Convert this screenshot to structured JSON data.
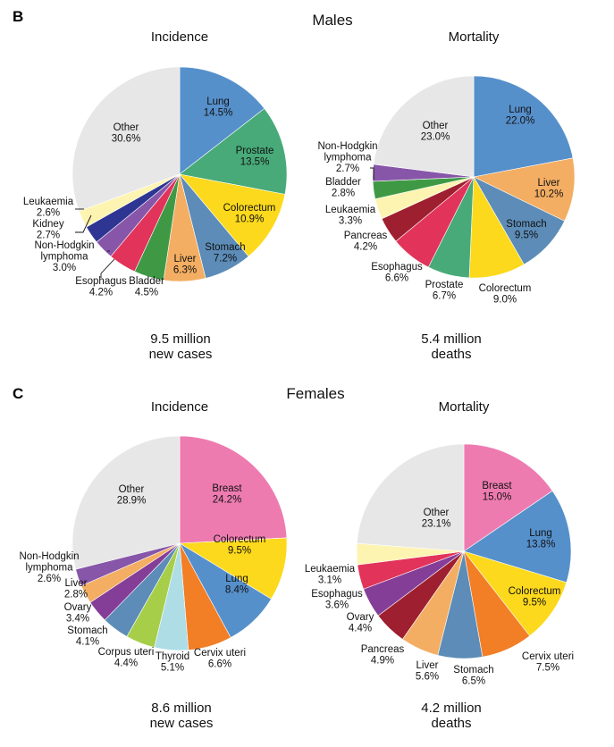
{
  "figure": {
    "panels": [
      {
        "letter": "B",
        "title": "Males"
      },
      {
        "letter": "C",
        "title": "Females"
      }
    ]
  },
  "chart_data": [
    {
      "type": "pie",
      "group": "Males",
      "title": "Incidence",
      "caption": [
        "9.5 million",
        "new cases"
      ],
      "unit": "%",
      "slices": [
        {
          "label": [
            "Lung"
          ],
          "value": 14.5,
          "value_text": "14.5%",
          "color": "#5690CB",
          "placement": "inside"
        },
        {
          "label": [
            "Prostate"
          ],
          "value": 13.5,
          "value_text": "13.5%",
          "color": "#48AA79",
          "placement": "inside"
        },
        {
          "label": [
            "Colorectum"
          ],
          "value": 10.9,
          "value_text": "10.9%",
          "color": "#FCD91C",
          "placement": "inside"
        },
        {
          "label": [
            "Stomach"
          ],
          "value": 7.2,
          "value_text": "7.2%",
          "color": "#5C8CB7",
          "placement": "inside"
        },
        {
          "label": [
            "Liver"
          ],
          "value": 6.3,
          "value_text": "6.3%",
          "color": "#F3AE63",
          "placement": "inside"
        },
        {
          "label": [
            "Bladder"
          ],
          "value": 4.5,
          "value_text": "4.5%",
          "color": "#3F9944",
          "placement": "outside"
        },
        {
          "label": [
            "Esophagus"
          ],
          "value": 4.2,
          "value_text": "4.2%",
          "color": "#E2335A",
          "placement": "outside"
        },
        {
          "label": [
            "Non-Hodgkin",
            "lymphoma"
          ],
          "value": 3.0,
          "value_text": "3.0%",
          "color": "#8756A9",
          "placement": "outside"
        },
        {
          "label": [
            "Kidney"
          ],
          "value": 2.7,
          "value_text": "2.7%",
          "color": "#2E3592",
          "placement": "outside"
        },
        {
          "label": [
            "Leukaemia"
          ],
          "value": 2.6,
          "value_text": "2.6%",
          "color": "#FDF4B2",
          "placement": "outside"
        },
        {
          "label": [
            "Other"
          ],
          "value": 30.6,
          "value_text": "30.6%",
          "color": "#E7E7E7",
          "placement": "inside"
        }
      ]
    },
    {
      "type": "pie",
      "group": "Males",
      "title": "Mortality",
      "caption": [
        "5.4 million",
        "deaths"
      ],
      "unit": "%",
      "slices": [
        {
          "label": [
            "Lung"
          ],
          "value": 22.0,
          "value_text": "22.0%",
          "color": "#5690CB",
          "placement": "inside"
        },
        {
          "label": [
            "Liver"
          ],
          "value": 10.2,
          "value_text": "10.2%",
          "color": "#F3AE63",
          "placement": "inside"
        },
        {
          "label": [
            "Stomach"
          ],
          "value": 9.5,
          "value_text": "9.5%",
          "color": "#5C8CB7",
          "placement": "inside"
        },
        {
          "label": [
            "Colorectum"
          ],
          "value": 9.0,
          "value_text": "9.0%",
          "color": "#FCD91C",
          "placement": "outside"
        },
        {
          "label": [
            "Prostate"
          ],
          "value": 6.7,
          "value_text": "6.7%",
          "color": "#48AA79",
          "placement": "outside"
        },
        {
          "label": [
            "Esophagus"
          ],
          "value": 6.6,
          "value_text": "6.6%",
          "color": "#E2335A",
          "placement": "outside"
        },
        {
          "label": [
            "Pancreas"
          ],
          "value": 4.2,
          "value_text": "4.2%",
          "color": "#9E1F2F",
          "placement": "outside"
        },
        {
          "label": [
            "Leukaemia"
          ],
          "value": 3.3,
          "value_text": "3.3%",
          "color": "#FDF4B2",
          "placement": "outside"
        },
        {
          "label": [
            "Bladder"
          ],
          "value": 2.8,
          "value_text": "2.8%",
          "color": "#3F9944",
          "placement": "outside"
        },
        {
          "label": [
            "Non-Hodgkin",
            "lymphoma"
          ],
          "value": 2.7,
          "value_text": "2.7%",
          "color": "#8756A9",
          "placement": "outside"
        },
        {
          "label": [
            "Other"
          ],
          "value": 23.0,
          "value_text": "23.0%",
          "color": "#E7E7E7",
          "placement": "inside"
        }
      ]
    },
    {
      "type": "pie",
      "group": "Females",
      "title": "Incidence",
      "caption": [
        "8.6 million",
        "new cases"
      ],
      "unit": "%",
      "slices": [
        {
          "label": [
            "Breast"
          ],
          "value": 24.2,
          "value_text": "24.2%",
          "color": "#EE7BB0",
          "placement": "inside"
        },
        {
          "label": [
            "Colorectum"
          ],
          "value": 9.5,
          "value_text": "9.5%",
          "color": "#FCD91C",
          "placement": "inside"
        },
        {
          "label": [
            "Lung"
          ],
          "value": 8.4,
          "value_text": "8.4%",
          "color": "#5690CB",
          "placement": "inside"
        },
        {
          "label": [
            "Cervix uteri"
          ],
          "value": 6.6,
          "value_text": "6.6%",
          "color": "#F27E26",
          "placement": "outside"
        },
        {
          "label": [
            "Thyroid"
          ],
          "value": 5.1,
          "value_text": "5.1%",
          "color": "#AEDDE6",
          "placement": "outside"
        },
        {
          "label": [
            "Corpus uteri"
          ],
          "value": 4.4,
          "value_text": "4.4%",
          "color": "#A6CE48",
          "placement": "outside"
        },
        {
          "label": [
            "Stomach"
          ],
          "value": 4.1,
          "value_text": "4.1%",
          "color": "#5C8CB7",
          "placement": "outside"
        },
        {
          "label": [
            "Ovary"
          ],
          "value": 3.4,
          "value_text": "3.4%",
          "color": "#853E97",
          "placement": "outside"
        },
        {
          "label": [
            "Liver"
          ],
          "value": 2.8,
          "value_text": "2.8%",
          "color": "#F3AE63",
          "placement": "outside"
        },
        {
          "label": [
            "Non-Hodgkin",
            "lymphoma"
          ],
          "value": 2.6,
          "value_text": "2.6%",
          "color": "#8756A9",
          "placement": "outside"
        },
        {
          "label": [
            "Other"
          ],
          "value": 28.9,
          "value_text": "28.9%",
          "color": "#E7E7E7",
          "placement": "inside"
        }
      ]
    },
    {
      "type": "pie",
      "group": "Females",
      "title": "Mortality",
      "caption": [
        "4.2 million",
        "deaths"
      ],
      "unit": "%",
      "slices": [
        {
          "label": [
            "Breast"
          ],
          "value": 15.0,
          "value_text": "15.0%",
          "color": "#EE7BB0",
          "placement": "inside"
        },
        {
          "label": [
            "Lung"
          ],
          "value": 13.8,
          "value_text": "13.8%",
          "color": "#5690CB",
          "placement": "inside"
        },
        {
          "label": [
            "Colorectum"
          ],
          "value": 9.5,
          "value_text": "9.5%",
          "color": "#FCD91C",
          "placement": "inside"
        },
        {
          "label": [
            "Cervix uteri"
          ],
          "value": 7.5,
          "value_text": "7.5%",
          "color": "#F27E26",
          "placement": "outside"
        },
        {
          "label": [
            "Stomach"
          ],
          "value": 6.5,
          "value_text": "6.5%",
          "color": "#5C8CB7",
          "placement": "outside"
        },
        {
          "label": [
            "Liver"
          ],
          "value": 5.6,
          "value_text": "5.6%",
          "color": "#F3AE63",
          "placement": "outside"
        },
        {
          "label": [
            "Pancreas"
          ],
          "value": 4.9,
          "value_text": "4.9%",
          "color": "#9E1F2F",
          "placement": "outside"
        },
        {
          "label": [
            "Ovary"
          ],
          "value": 4.4,
          "value_text": "4.4%",
          "color": "#853E97",
          "placement": "outside"
        },
        {
          "label": [
            "Esophagus"
          ],
          "value": 3.6,
          "value_text": "3.6%",
          "color": "#E2335A",
          "placement": "outside"
        },
        {
          "label": [
            "Leukaemia"
          ],
          "value": 3.1,
          "value_text": "3.1%",
          "color": "#FDF4B2",
          "placement": "outside"
        },
        {
          "label": [
            "Other"
          ],
          "value": 23.1,
          "value_text": "23.1%",
          "color": "#E7E7E7",
          "placement": "inside"
        }
      ]
    }
  ]
}
